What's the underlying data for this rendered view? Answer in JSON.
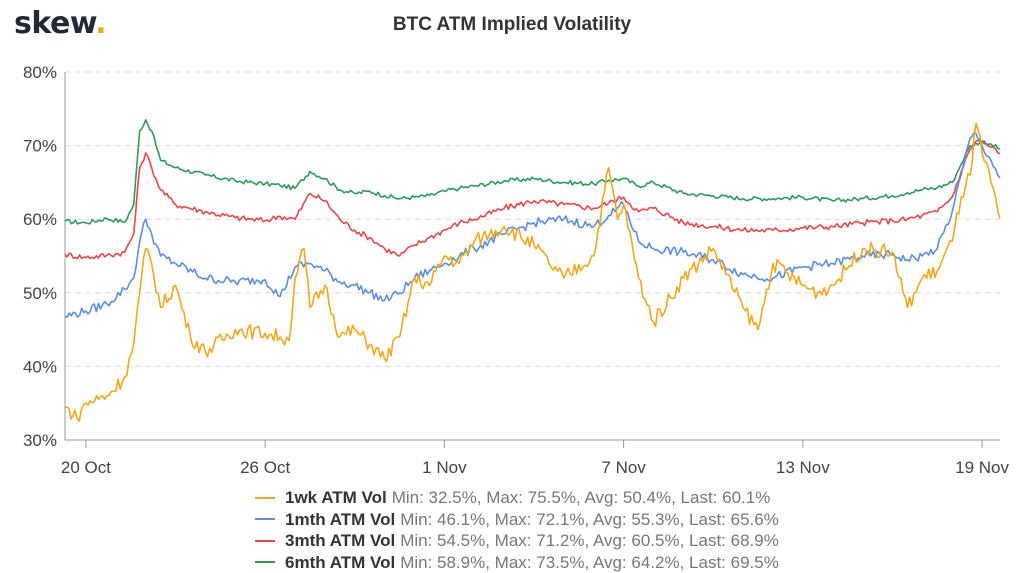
{
  "logo": {
    "text": "skew",
    "dot": "."
  },
  "chart_data": {
    "type": "line",
    "title": "BTC ATM Implied Volatility",
    "ylim": [
      30,
      80
    ],
    "yticks": [
      "30%",
      "40%",
      "50%",
      "60%",
      "70%",
      "80%"
    ],
    "ytick_values": [
      30,
      40,
      50,
      60,
      70,
      80
    ],
    "xlim": [
      -0.7,
      30.6
    ],
    "xticks": [
      {
        "label": "20 Oct",
        "x": 0
      },
      {
        "label": "26 Oct",
        "x": 6
      },
      {
        "label": "1 Nov",
        "x": 12
      },
      {
        "label": "7 Nov",
        "x": 18
      },
      {
        "label": "13 Nov",
        "x": 24
      },
      {
        "label": "19 Nov",
        "x": 30
      }
    ],
    "grid": true,
    "legend_position": "bottom",
    "series": [
      {
        "name": "6mth ATM Vol",
        "color": "#2e9b5b",
        "stats": "Min: 58.9%, Max: 73.5%, Avg: 64.2%, Last: 69.5%",
        "x": [
          -0.7,
          0,
          0.7,
          1.3,
          1.6,
          1.8,
          2.0,
          2.2,
          2.5,
          3,
          4,
          5,
          6,
          6.5,
          7,
          7.5,
          8,
          8.5,
          9,
          9.5,
          10,
          10.5,
          11,
          11.5,
          12,
          12.5,
          13,
          14,
          15,
          16,
          17,
          17.5,
          18,
          18.5,
          19,
          20,
          21,
          22,
          23,
          24,
          25,
          26,
          27,
          27.5,
          28,
          28.5,
          29,
          29.3,
          29.6,
          29.8,
          30,
          30.3,
          30.6
        ],
        "y": [
          59.7,
          59.5,
          60.1,
          59.6,
          62,
          72,
          73.5,
          72,
          68,
          67,
          66,
          65.2,
          64.8,
          64.6,
          64.2,
          66.5,
          65.5,
          64,
          63.5,
          63.8,
          63.2,
          62.8,
          63,
          63.2,
          63.8,
          64.2,
          64.5,
          65.2,
          65.5,
          65,
          64.8,
          65.3,
          65.5,
          64.5,
          65,
          63.5,
          63.2,
          62.8,
          62.8,
          63,
          62.5,
          62.8,
          63.2,
          63.6,
          64,
          64.3,
          65,
          67.5,
          70,
          70.3,
          70.6,
          70.2,
          69.5
        ]
      },
      {
        "name": "3mth ATM Vol",
        "color": "#e8474a",
        "stats": "Min: 54.5%, Max: 71.2%, Avg: 60.5%, Last: 68.9%",
        "x": [
          -0.7,
          0,
          0.7,
          1.3,
          1.6,
          1.8,
          2.0,
          2.2,
          2.5,
          3,
          4,
          5,
          6,
          6.5,
          7,
          7.5,
          8,
          8.5,
          9,
          9.5,
          10,
          10.5,
          11,
          11.5,
          12,
          12.5,
          13,
          14,
          15,
          16,
          17,
          17.5,
          18,
          18.5,
          19,
          20,
          21,
          22,
          23,
          24,
          25,
          26,
          27,
          27.5,
          28,
          28.5,
          29,
          29.3,
          29.6,
          29.8,
          30,
          30.3,
          30.6
        ],
        "y": [
          55.2,
          54.8,
          55.1,
          55.5,
          58,
          67,
          69,
          67,
          64,
          62,
          61,
          60.2,
          59.8,
          60.4,
          60,
          63.5,
          62.5,
          60,
          58.5,
          57.5,
          56,
          55,
          56.5,
          57.5,
          58.5,
          59.5,
          60,
          61.5,
          62.5,
          62,
          61.5,
          62.2,
          63,
          61,
          61.5,
          59.5,
          59,
          58.5,
          58.5,
          58.8,
          59,
          59.5,
          59.8,
          60,
          60.5,
          61,
          63,
          66.5,
          69.5,
          70.6,
          70.5,
          69.8,
          68.9
        ]
      },
      {
        "name": "1mth ATM Vol",
        "color": "#5b8fe0",
        "stats": "Min: 46.1%, Max: 72.1%, Avg: 55.3%, Last: 65.6%",
        "x": [
          -0.7,
          0,
          0.7,
          1.3,
          1.6,
          1.8,
          2.0,
          2.2,
          2.5,
          3,
          4,
          5,
          6,
          6.5,
          7,
          7.5,
          8,
          8.5,
          9,
          9.5,
          10,
          10.5,
          11,
          11.5,
          12,
          12.5,
          13,
          14,
          15,
          16,
          17,
          17.5,
          18,
          18.5,
          19,
          20,
          21,
          22,
          23,
          24,
          25,
          26,
          27,
          27.5,
          28,
          28.5,
          29,
          29.3,
          29.6,
          29.8,
          30,
          30.3,
          30.6
        ],
        "y": [
          46.8,
          47.5,
          48.5,
          50.5,
          52,
          57,
          60,
          58,
          55,
          54,
          52,
          51.5,
          51.8,
          49.5,
          53.5,
          54,
          53,
          51.5,
          51,
          50,
          49,
          50,
          52,
          53,
          54,
          55,
          56,
          58,
          59.5,
          60,
          59,
          60.5,
          62,
          57,
          56,
          55.5,
          54.5,
          52.5,
          52,
          53.5,
          54,
          55,
          55.2,
          54.5,
          55,
          56,
          61,
          66,
          71,
          71.6,
          70,
          68,
          65.6
        ]
      },
      {
        "name": "1wk ATM Vol",
        "color": "#f0a81c",
        "stats": "Min: 32.5%, Max: 75.5%, Avg: 50.4%, Last: 60.1%",
        "x": [
          -0.7,
          -0.3,
          0,
          0.7,
          1.3,
          1.6,
          1.8,
          2.0,
          2.2,
          2.5,
          3,
          3.5,
          4,
          5,
          6,
          6.5,
          6.8,
          7,
          7.3,
          7.5,
          8,
          8.5,
          9,
          9.5,
          10,
          10.5,
          11,
          11.5,
          12,
          12.5,
          13,
          14,
          15,
          15.5,
          16,
          17,
          17.5,
          17.8,
          18,
          18.5,
          19,
          20,
          21,
          22,
          22.5,
          23,
          24,
          24.5,
          25,
          26,
          27,
          27.5,
          28,
          28.5,
          29,
          29.3,
          29.6,
          29.8,
          30,
          30.3,
          30.6
        ],
        "y": [
          34.5,
          33,
          35,
          36,
          38.5,
          43,
          50,
          56,
          54,
          48,
          51,
          44,
          42,
          45,
          44.5,
          44,
          43.5,
          52,
          56,
          48,
          51,
          44,
          45,
          43,
          41,
          44,
          52,
          51,
          55,
          54,
          57,
          59,
          56.5,
          54,
          52,
          55,
          67,
          60,
          62,
          52,
          46,
          52,
          56,
          48,
          45,
          54,
          51,
          50,
          51,
          56,
          55.5,
          48,
          52,
          53,
          57,
          63,
          66,
          73,
          69,
          65,
          60.1
        ]
      }
    ]
  }
}
